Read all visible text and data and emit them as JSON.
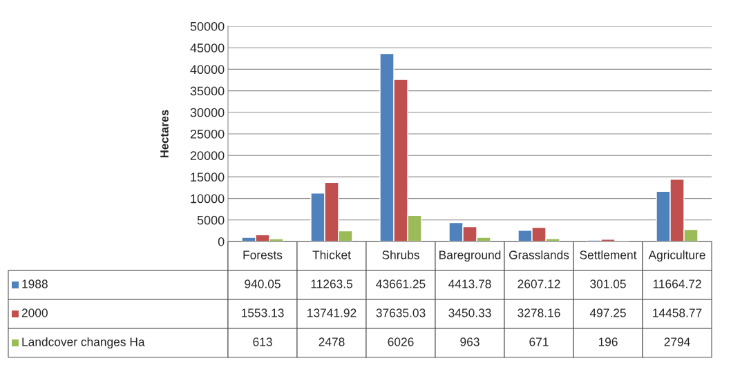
{
  "chart_data": {
    "type": "bar",
    "ylabel": "Hectares",
    "categories": [
      "Forests",
      "Thicket",
      "Shrubs",
      "Bareground",
      "Grasslands",
      "Settlement",
      "Agriculture"
    ],
    "series": [
      {
        "name": "1988",
        "color": "#4f81bd",
        "values": [
          940.05,
          11263.5,
          43661.25,
          4413.78,
          2607.12,
          301.05,
          11664.72
        ]
      },
      {
        "name": "2000",
        "color": "#c0504d",
        "values": [
          1553.13,
          13741.92,
          37635.03,
          3450.33,
          3278.16,
          497.25,
          14458.77
        ]
      },
      {
        "name": "Landcover changes Ha",
        "color": "#9bbb59",
        "values": [
          613,
          2478,
          6026,
          963,
          671,
          196,
          2794
        ]
      }
    ],
    "ylim": [
      0,
      50000
    ],
    "yticks": [
      0,
      5000,
      10000,
      15000,
      20000,
      25000,
      30000,
      35000,
      40000,
      45000,
      50000
    ],
    "grid": "y",
    "legend": "bottom",
    "data_labels": true
  }
}
